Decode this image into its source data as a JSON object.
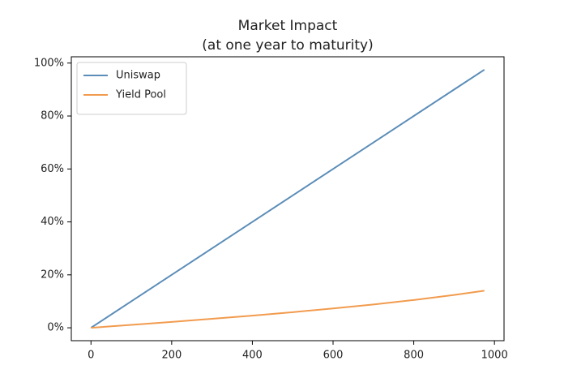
{
  "chart_data": {
    "type": "line",
    "title": "Market Impact",
    "subtitle": "(at one year to maturity)",
    "x": [
      0,
      100,
      200,
      300,
      400,
      500,
      600,
      700,
      800,
      900,
      975
    ],
    "series": [
      {
        "name": "Uniswap",
        "color": "#5b8db8",
        "values": [
          0,
          10,
          20,
          30,
          40,
          50,
          60,
          70,
          80,
          90,
          97.5
        ]
      },
      {
        "name": "Yield Pool",
        "color": "#f29b4e",
        "values": [
          0,
          1.1,
          2.2,
          3.4,
          4.6,
          5.9,
          7.3,
          8.8,
          10.5,
          12.4,
          14.0
        ]
      }
    ],
    "xlim": [
      -48.75,
      1023.75
    ],
    "xticks": [
      0,
      200,
      400,
      600,
      800,
      1000
    ],
    "ylim": [
      -4.875,
      102.375
    ],
    "yticks": [
      {
        "value": 0,
        "label": "0%"
      },
      {
        "value": 20,
        "label": "20%"
      },
      {
        "value": 40,
        "label": "40%"
      },
      {
        "value": 60,
        "label": "60%"
      },
      {
        "value": 80,
        "label": "80%"
      },
      {
        "value": 100,
        "label": "100%"
      }
    ],
    "legend": "upper left",
    "grid": false
  }
}
